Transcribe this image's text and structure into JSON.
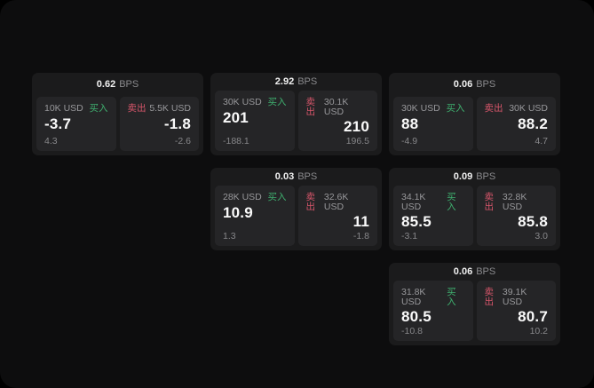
{
  "labels": {
    "bps_unit": "BPS",
    "buy": "买入",
    "sell": "卖出"
  },
  "colors": {
    "buy": "#3fb06f",
    "sell": "#d8566b",
    "background": "#0d0d0e",
    "card": "#1b1b1c",
    "panel": "#252527"
  },
  "cards": [
    {
      "bps": "0.62",
      "grid": {
        "col": 1,
        "row": 1
      },
      "buy": {
        "amount": "10K USD",
        "value": "-3.7",
        "delta": "4.3"
      },
      "sell": {
        "amount": "5.5K USD",
        "value": "-1.8",
        "delta": "-2.6"
      }
    },
    {
      "bps": "2.92",
      "grid": {
        "col": 2,
        "row": 1
      },
      "buy": {
        "amount": "30K USD",
        "value": "201",
        "delta": "-188.1"
      },
      "sell": {
        "amount": "30.1K USD",
        "value": "210",
        "delta": "196.5"
      }
    },
    {
      "bps": "0.06",
      "grid": {
        "col": 3,
        "row": 1
      },
      "buy": {
        "amount": "30K USD",
        "value": "88",
        "delta": "-4.9"
      },
      "sell": {
        "amount": "30K USD",
        "value": "88.2",
        "delta": "4.7"
      }
    },
    {
      "bps": "0.03",
      "grid": {
        "col": 2,
        "row": 2
      },
      "buy": {
        "amount": "28K USD",
        "value": "10.9",
        "delta": "1.3"
      },
      "sell": {
        "amount": "32.6K USD",
        "value": "11",
        "delta": "-1.8"
      }
    },
    {
      "bps": "0.09",
      "grid": {
        "col": 3,
        "row": 2
      },
      "buy": {
        "amount": "34.1K USD",
        "value": "85.5",
        "delta": "-3.1"
      },
      "sell": {
        "amount": "32.8K USD",
        "value": "85.8",
        "delta": "3.0"
      }
    },
    {
      "bps": "0.06",
      "grid": {
        "col": 3,
        "row": 3
      },
      "buy": {
        "amount": "31.8K USD",
        "value": "80.5",
        "delta": "-10.8"
      },
      "sell": {
        "amount": "39.1K USD",
        "value": "80.7",
        "delta": "10.2"
      }
    }
  ]
}
